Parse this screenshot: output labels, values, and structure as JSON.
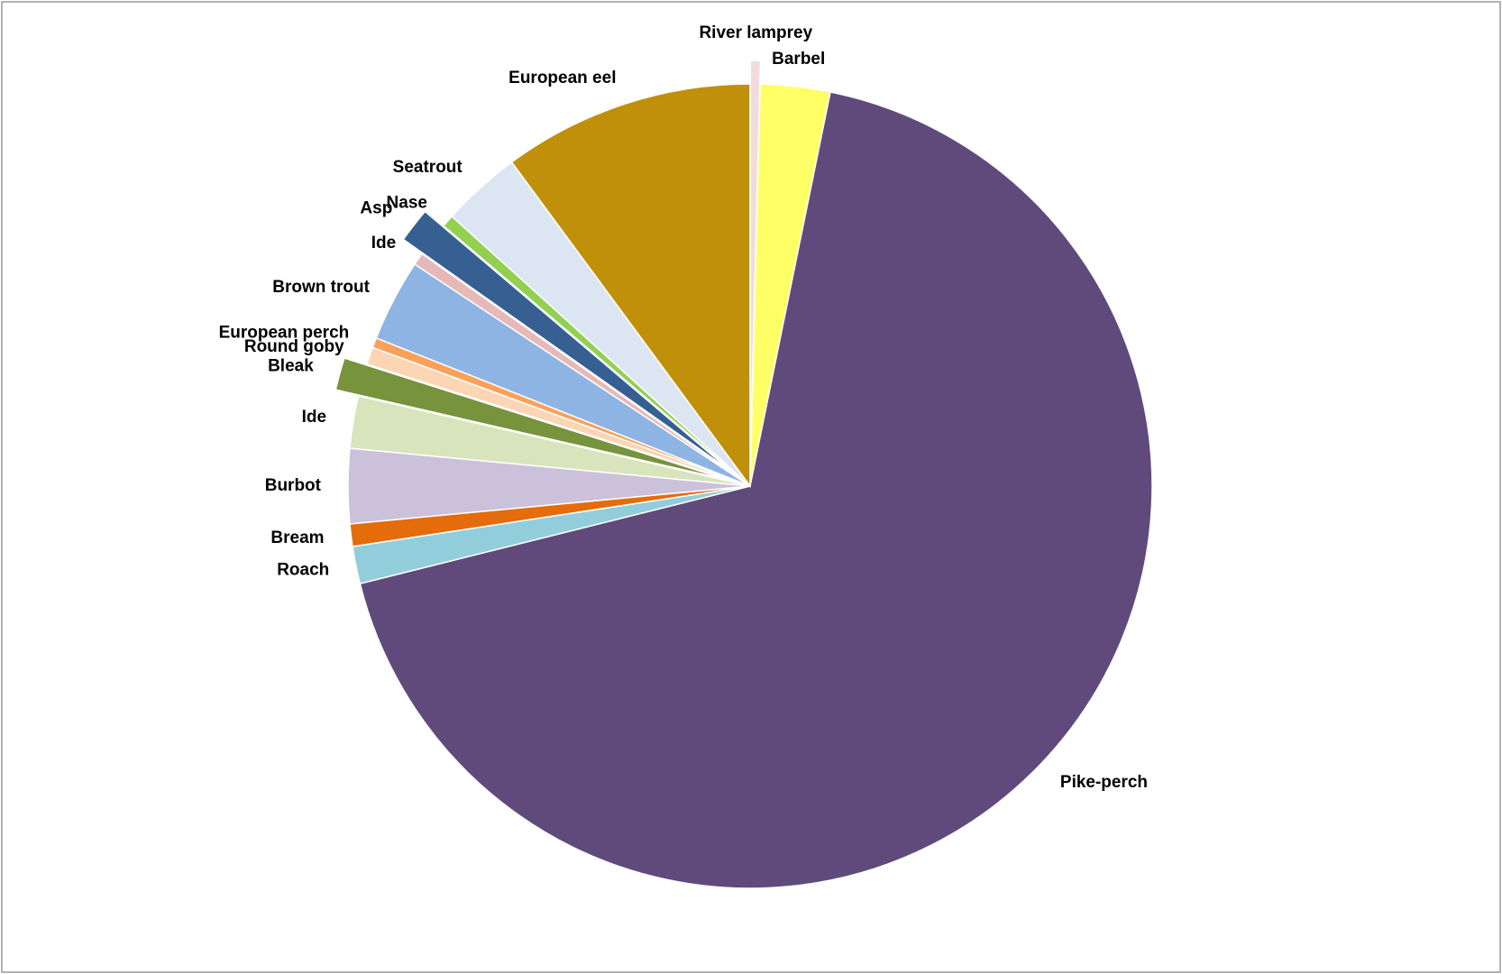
{
  "chart_data": {
    "type": "pie",
    "categories": [
      "River lamprey",
      "Barbel",
      "Pike-perch",
      "Roach",
      "Bream",
      "Burbot",
      "Ide",
      "Bleak",
      "Round goby",
      "European perch",
      "Brown trout",
      "Ide",
      "Asp",
      "Nase",
      "Seatrout",
      "European eel"
    ],
    "values": [
      0.4,
      2.8,
      67.9,
      1.5,
      0.9,
      3.0,
      2.1,
      1.3,
      0.7,
      0.4,
      3.3,
      0.5,
      1.4,
      0.5,
      3.2,
      10.1
    ],
    "colors": [
      "#f2dcdb",
      "#ffff66",
      "#604a7b",
      "#92cddc",
      "#e46c0a",
      "#ccc1da",
      "#d7e4bc",
      "#77933c",
      "#fcd5b5",
      "#f9a15a",
      "#8eb4e3",
      "#e6b9b8",
      "#366092",
      "#92d050",
      "#dce6f2",
      "#c0900a"
    ],
    "explode": [
      true,
      false,
      false,
      false,
      false,
      false,
      false,
      true,
      false,
      false,
      false,
      false,
      true,
      false,
      false,
      false
    ]
  }
}
